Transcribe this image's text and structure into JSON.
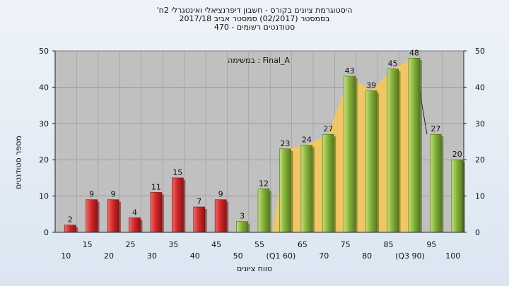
{
  "chart_data": {
    "type": "bar",
    "title_lines": [
      "'היסטוגרמת ציונים בקורס - חשבון דיפרנציאלי ואינטגרלי 2ח",
      "בסמסטר  (02/2017)  סמסטר אביב 2017/18",
      "סטודנטים רשומים - 470"
    ],
    "xlabel": "טווח ציונים",
    "ylabel": "מספר סטודנטים",
    "annotation": "במשימה : Final_A",
    "ylim": [
      0,
      50
    ],
    "yticks": [
      0,
      10,
      20,
      30,
      40,
      50
    ],
    "categories": [
      "10",
      "15",
      "20",
      "25",
      "30",
      "35",
      "40",
      "45",
      "50",
      "55",
      "(Q1 60)",
      "65",
      "70",
      "75",
      "80",
      "85",
      "(Q3 90)",
      "95",
      "100"
    ],
    "values": [
      2,
      9,
      9,
      4,
      11,
      15,
      7,
      9,
      3,
      12,
      23,
      24,
      27,
      43,
      39,
      45,
      48,
      27,
      20
    ],
    "failing_count": 8,
    "colors": {
      "fail": "#d42a2a",
      "pass": "#86b43a",
      "plot_bg": "#c0c0c0",
      "iqr_fill": "#f8c65a"
    },
    "grid": true
  }
}
